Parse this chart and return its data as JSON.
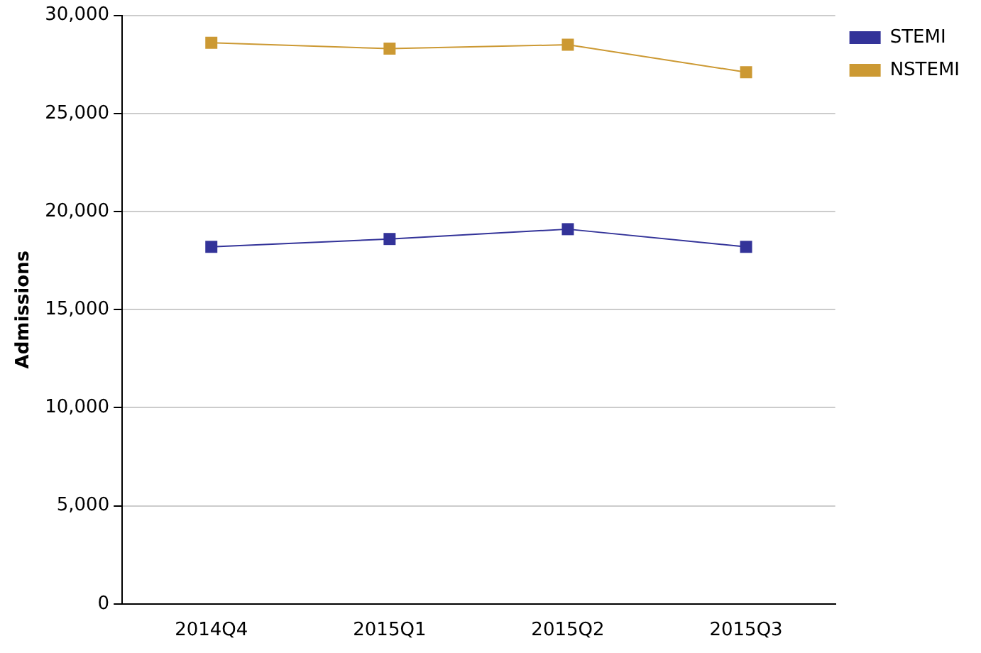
{
  "chart_data": {
    "type": "line",
    "ylabel": "Admissions",
    "categories": [
      "2014Q4",
      "2015Q1",
      "2015Q2",
      "2015Q3"
    ],
    "series": [
      {
        "name": "STEMI",
        "color": "#333399",
        "values": [
          18200,
          18600,
          19100,
          18200
        ]
      },
      {
        "name": "NSTEMI",
        "color": "#cc9933",
        "values": [
          28600,
          28300,
          28500,
          27100
        ]
      }
    ],
    "ylim": [
      0,
      30000
    ],
    "yticks": [
      0,
      {
        "value": 5000,
        "label": "5,000"
      },
      {
        "value": 10000,
        "label": "10,000"
      },
      {
        "value": 15000,
        "label": "15,000"
      },
      {
        "value": 20000,
        "label": "20,000"
      },
      {
        "value": 25000,
        "label": "25,000"
      },
      {
        "value": 30000,
        "label": "30,000"
      }
    ],
    "grid": "y",
    "legend": "top right",
    "marker": "square",
    "line_style": "solid"
  }
}
